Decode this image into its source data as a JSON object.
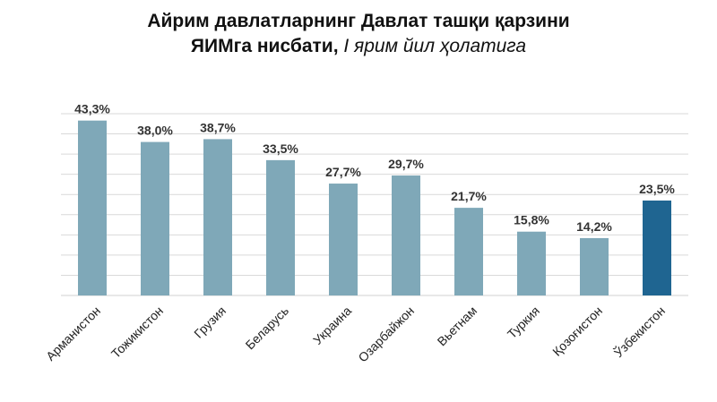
{
  "title": {
    "line1": "Айрим давлатларнинг Давлат ташқи қарзини",
    "line2_bold": "ЯИМга нисбати,",
    "line2_italic": " I ярим йил ҳолатига"
  },
  "chart_data": {
    "type": "bar",
    "title": "Айрим давлатларнинг Давлат ташқи қарзини ЯИМга нисбати, I ярим йил ҳолатига",
    "categories": [
      "Арманистон",
      "Тожикистон",
      "Грузия",
      "Беларусь",
      "Украина",
      "Озарбайжон",
      "Вьетнам",
      "Туркия",
      "Қозоғистон",
      "Ўзбекистон"
    ],
    "values": [
      43.3,
      38.0,
      38.7,
      33.5,
      27.7,
      29.7,
      21.7,
      15.8,
      14.2,
      23.5
    ],
    "value_labels": [
      "43,3%",
      "38,0%",
      "38,7%",
      "33,5%",
      "27,7%",
      "29,7%",
      "21,7%",
      "15,8%",
      "14,2%",
      "23,5%"
    ],
    "xlabel": "",
    "ylabel": "",
    "ylim": [
      0,
      45
    ],
    "grid": true,
    "colors": {
      "default": "#7fa8b8",
      "highlight": "#1f6591",
      "grid": "#d9d9d9"
    },
    "highlight_index": 9
  }
}
